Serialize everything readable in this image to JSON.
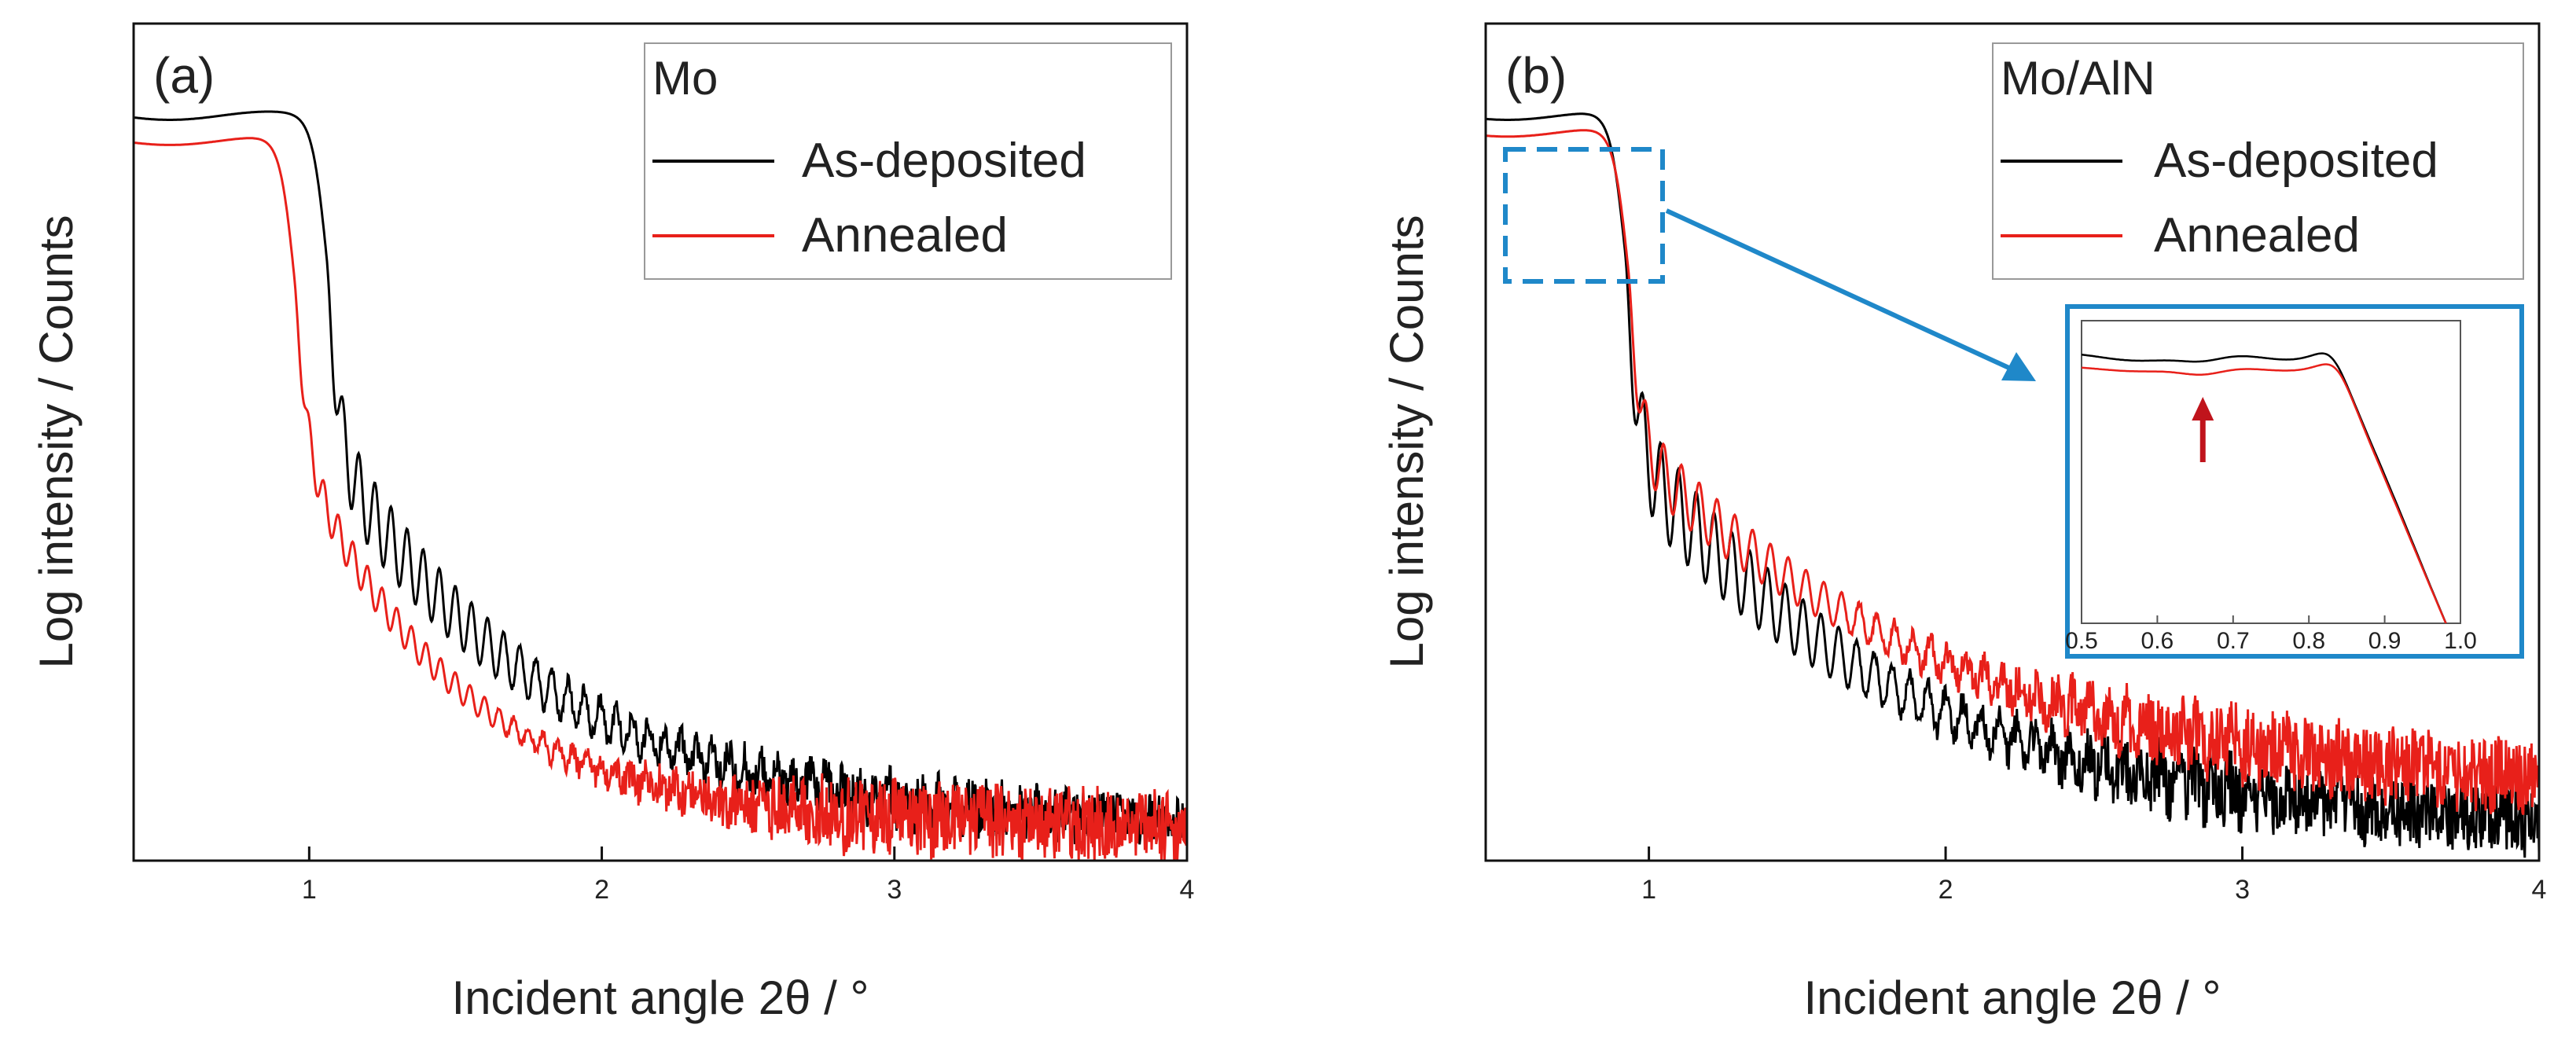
{
  "chart_data": [
    {
      "type": "line",
      "panel_label": "(a)",
      "legend_title": "Mo",
      "xlabel": "Incident angle 2θ / °",
      "ylabel": "Log intensity / Counts",
      "xlim": [
        0.4,
        4.0
      ],
      "ylim": [
        0,
        1
      ],
      "xticks": [
        1,
        2,
        3,
        4
      ],
      "xtick_labels": [
        "1",
        "2",
        "3",
        "4"
      ],
      "legend_position": "top-right",
      "series": [
        {
          "name": "As-deposited",
          "color": "#000000",
          "plateau": 0.89,
          "edge": 1.06,
          "fringe_period": 0.055,
          "fringe_amp": 0.05,
          "decay_mid": 1.45,
          "tail": 0.04,
          "noise": 0.03
        },
        {
          "name": "Annealed",
          "color": "#e8201a",
          "plateau": 0.86,
          "edge": 0.95,
          "fringe_period": 0.05,
          "fringe_amp": 0.025,
          "decay_mid": 1.15,
          "tail": 0.04,
          "noise": 0.045
        }
      ]
    },
    {
      "type": "line",
      "panel_label": "(b)",
      "legend_title": "Mo/AlN",
      "xlabel": "Incident angle 2θ / °",
      "ylabel": "Log intensity / Counts",
      "xlim": [
        0.45,
        4.0
      ],
      "ylim": [
        0,
        1
      ],
      "xticks": [
        1,
        2,
        3,
        4
      ],
      "xtick_labels": [
        "1",
        "2",
        "3",
        "4"
      ],
      "legend_position": "top-right",
      "series": [
        {
          "name": "As-deposited",
          "color": "#000000",
          "plateau": 0.89,
          "edge": 0.92,
          "fringe_period": 0.06,
          "fringe_amp": 0.06,
          "decay_mid": 1.5,
          "tail": 0.03,
          "noise": 0.04
        },
        {
          "name": "Annealed",
          "color": "#e8201a",
          "plateau": 0.87,
          "edge": 0.93,
          "fringe_period": 0.06,
          "fringe_amp": 0.04,
          "decay_mid": 1.7,
          "tail": 0.07,
          "noise": 0.045
        }
      ],
      "highlight_box": {
        "x_range": [
          0.5,
          0.95
        ],
        "color": "#1f88c9",
        "style": "dashed"
      },
      "inset": {
        "type": "line",
        "xlim": [
          0.5,
          1.0
        ],
        "xticks": [
          0.5,
          0.6,
          0.7,
          0.8,
          0.9,
          1.0
        ],
        "xtick_labels": [
          "0.5",
          "0.6",
          "0.7",
          "0.8",
          "0.9",
          "1.0"
        ],
        "annotation": {
          "type": "arrow",
          "x": 0.66,
          "color": "#c0141c"
        },
        "border_color": "#1f88c9"
      }
    }
  ]
}
